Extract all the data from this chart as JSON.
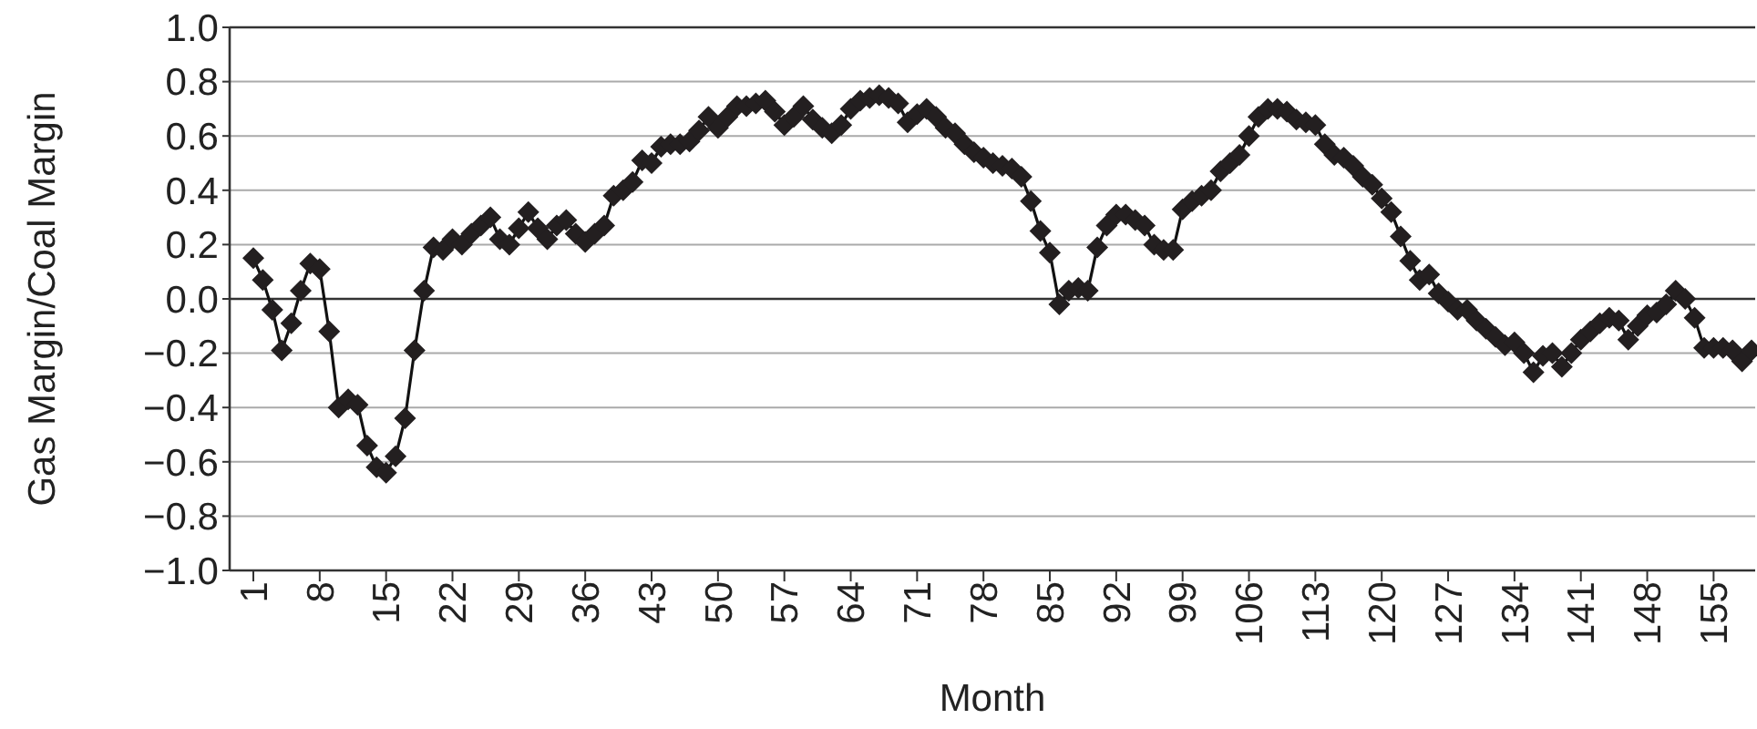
{
  "chart_data": {
    "type": "line",
    "xlabel": "Month",
    "ylabel": "Gas Margin/Coal Margin",
    "categories": [
      "1",
      null,
      null,
      null,
      null,
      null,
      null,
      "8",
      null,
      null,
      null,
      null,
      null,
      null,
      "15",
      null,
      null,
      null,
      null,
      null,
      null,
      "22",
      null,
      null,
      null,
      null,
      null,
      null,
      "29",
      null,
      null,
      null,
      null,
      null,
      null,
      "36",
      null,
      null,
      null,
      null,
      null,
      null,
      "43",
      null,
      null,
      null,
      null,
      null,
      null,
      "50",
      null,
      null,
      null,
      null,
      null,
      null,
      "57",
      null,
      null,
      null,
      null,
      null,
      null,
      "64",
      null,
      null,
      null,
      null,
      null,
      null,
      "71",
      null,
      null,
      null,
      null,
      null,
      null,
      "78",
      null,
      null,
      null,
      null,
      null,
      null,
      "85",
      null,
      null,
      null,
      null,
      null,
      null,
      "92",
      null,
      null,
      null,
      null,
      null,
      null,
      "99",
      null,
      null,
      null,
      null,
      null,
      null,
      "106",
      null,
      null,
      null,
      null,
      null,
      null,
      "113",
      null,
      null,
      null,
      null,
      null,
      null,
      "120",
      null,
      null,
      null,
      null,
      null,
      null,
      "127",
      null,
      null,
      null,
      null,
      null,
      null,
      "134",
      null,
      null,
      null,
      null,
      null,
      null,
      "141",
      null,
      null,
      null,
      null,
      null,
      null,
      "148",
      null,
      null,
      null,
      null,
      null,
      null,
      "155",
      null,
      null,
      null,
      null
    ],
    "series": [
      {
        "color": "#231f20",
        "values": [
          0.15,
          0.07,
          -0.04,
          -0.19,
          -0.09,
          0.03,
          0.13,
          0.11,
          -0.12,
          -0.4,
          -0.37,
          -0.39,
          -0.54,
          -0.62,
          -0.64,
          -0.58,
          -0.44,
          -0.19,
          0.03,
          0.19,
          0.18,
          0.22,
          0.2,
          0.24,
          0.27,
          0.3,
          0.22,
          0.2,
          0.26,
          0.32,
          0.26,
          0.22,
          0.27,
          0.29,
          0.24,
          0.21,
          0.24,
          0.27,
          0.38,
          0.4,
          0.43,
          0.51,
          0.5,
          0.56,
          0.57,
          0.57,
          0.58,
          0.62,
          0.67,
          0.63,
          0.67,
          0.71,
          0.71,
          0.72,
          0.73,
          0.69,
          0.64,
          0.67,
          0.71,
          0.66,
          0.63,
          0.61,
          0.64,
          0.7,
          0.73,
          0.74,
          0.75,
          0.74,
          0.72,
          0.65,
          0.68,
          0.7,
          0.67,
          0.63,
          0.61,
          0.57,
          0.54,
          0.52,
          0.5,
          0.49,
          0.48,
          0.45,
          0.36,
          0.25,
          0.17,
          -0.02,
          0.03,
          0.04,
          0.03,
          0.19,
          0.27,
          0.31,
          0.31,
          0.29,
          0.27,
          0.2,
          0.18,
          0.18,
          0.33,
          0.36,
          0.38,
          0.4,
          0.47,
          0.5,
          0.53,
          0.6,
          0.67,
          0.7,
          0.7,
          0.69,
          0.66,
          0.65,
          0.64,
          0.57,
          0.53,
          0.52,
          0.49,
          0.45,
          0.42,
          0.37,
          0.32,
          0.23,
          0.14,
          0.07,
          0.09,
          0.02,
          -0.01,
          -0.04,
          -0.04,
          -0.08,
          -0.11,
          -0.14,
          -0.17,
          -0.16,
          -0.2,
          -0.27,
          -0.21,
          -0.2,
          -0.25,
          -0.2,
          -0.15,
          -0.12,
          -0.09,
          -0.07,
          -0.08,
          -0.15,
          -0.1,
          -0.06,
          -0.05,
          -0.02,
          0.03,
          0,
          -0.07,
          -0.18,
          -0.18,
          -0.18,
          -0.19,
          -0.23,
          -0.19
        ]
      }
    ],
    "ylim": [
      -1,
      1
    ],
    "yticks": [
      {
        "value": -1,
        "label": "−1.0"
      },
      {
        "value": -0.8,
        "label": "−0.8"
      },
      {
        "value": -0.6,
        "label": "−0.6"
      },
      {
        "value": -0.4,
        "label": "−0.4"
      },
      {
        "value": -0.2,
        "label": "−0.2"
      },
      {
        "value": 0,
        "label": "0.0"
      },
      {
        "value": 0.2,
        "label": "0.2"
      },
      {
        "value": 0.4,
        "label": "0.4"
      },
      {
        "value": 0.6,
        "label": "0.6"
      },
      {
        "value": 0.8,
        "label": "0.8"
      },
      {
        "value": 1,
        "label": "1.0"
      }
    ],
    "grid": "y",
    "marker": "diamond",
    "line_style": "solid",
    "ref_lines": [
      {
        "axis": "y",
        "value": 0
      }
    ]
  }
}
